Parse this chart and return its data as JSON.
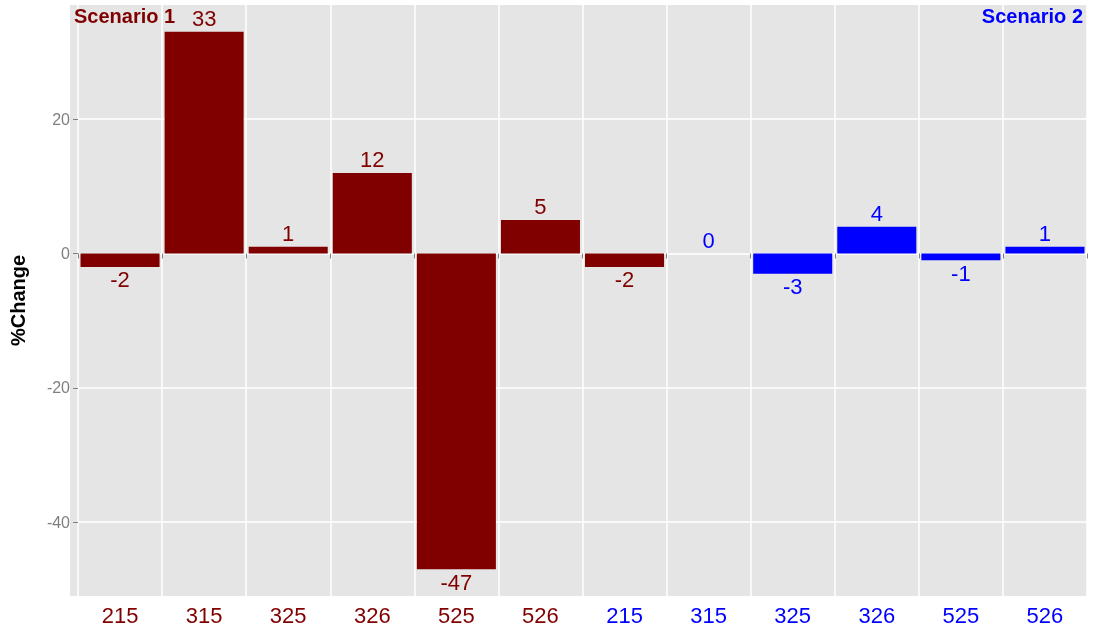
{
  "chart_data": {
    "type": "bar",
    "ylabel": "%Change",
    "categories": [
      "215",
      "315",
      "325",
      "326",
      "525",
      "526",
      "215",
      "315",
      "325",
      "326",
      "525",
      "526"
    ],
    "series": [
      {
        "name": "Scenario 1",
        "color": "#800000",
        "values": [
          -2,
          33,
          1,
          12,
          -47,
          5,
          -2,
          null,
          null,
          null,
          null,
          null
        ]
      },
      {
        "name": "Scenario 2",
        "color": "#0000ff",
        "values": [
          null,
          null,
          null,
          null,
          null,
          null,
          null,
          0,
          -3,
          4,
          -1,
          1
        ]
      }
    ],
    "ylim": [
      -51,
      37
    ],
    "yticks": [
      -40,
      -20,
      0,
      20
    ],
    "grid": true,
    "data_labels": true,
    "legend": false
  }
}
